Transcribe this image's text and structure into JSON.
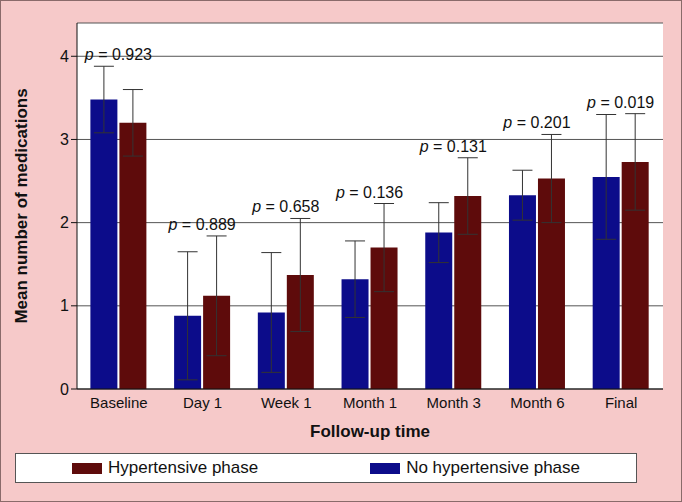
{
  "chart_data": {
    "type": "bar",
    "x_label": "Follow-up time",
    "y_label": "Mean number of medications",
    "categories": [
      "Baseline",
      "Day 1",
      "Week 1",
      "Month 1",
      "Month 3",
      "Month 6",
      "Final"
    ],
    "series": [
      {
        "name": "No hypertensive phase",
        "color": "#0c0c8a",
        "values": [
          3.48,
          0.88,
          0.92,
          1.32,
          1.88,
          2.33,
          2.55
        ],
        "errors": [
          0.4,
          0.77,
          0.72,
          0.46,
          0.36,
          0.3,
          0.75
        ]
      },
      {
        "name": "Hypertensive phase",
        "color": "#5e0b0b",
        "values": [
          3.2,
          1.12,
          1.37,
          1.7,
          2.32,
          2.53,
          2.73
        ],
        "errors": [
          0.4,
          0.72,
          0.68,
          0.53,
          0.46,
          0.53,
          0.58
        ]
      }
    ],
    "annotations": [
      "p = 0.923",
      "p = 0.889",
      "p = 0.658",
      "p = 0.136",
      "p = 0.131",
      "p = 0.201",
      "p = 0.019"
    ],
    "ylim": [
      0,
      4.4
    ],
    "yticks": [
      0,
      1,
      2,
      3,
      4
    ],
    "grid": true,
    "legend": "bottom"
  }
}
